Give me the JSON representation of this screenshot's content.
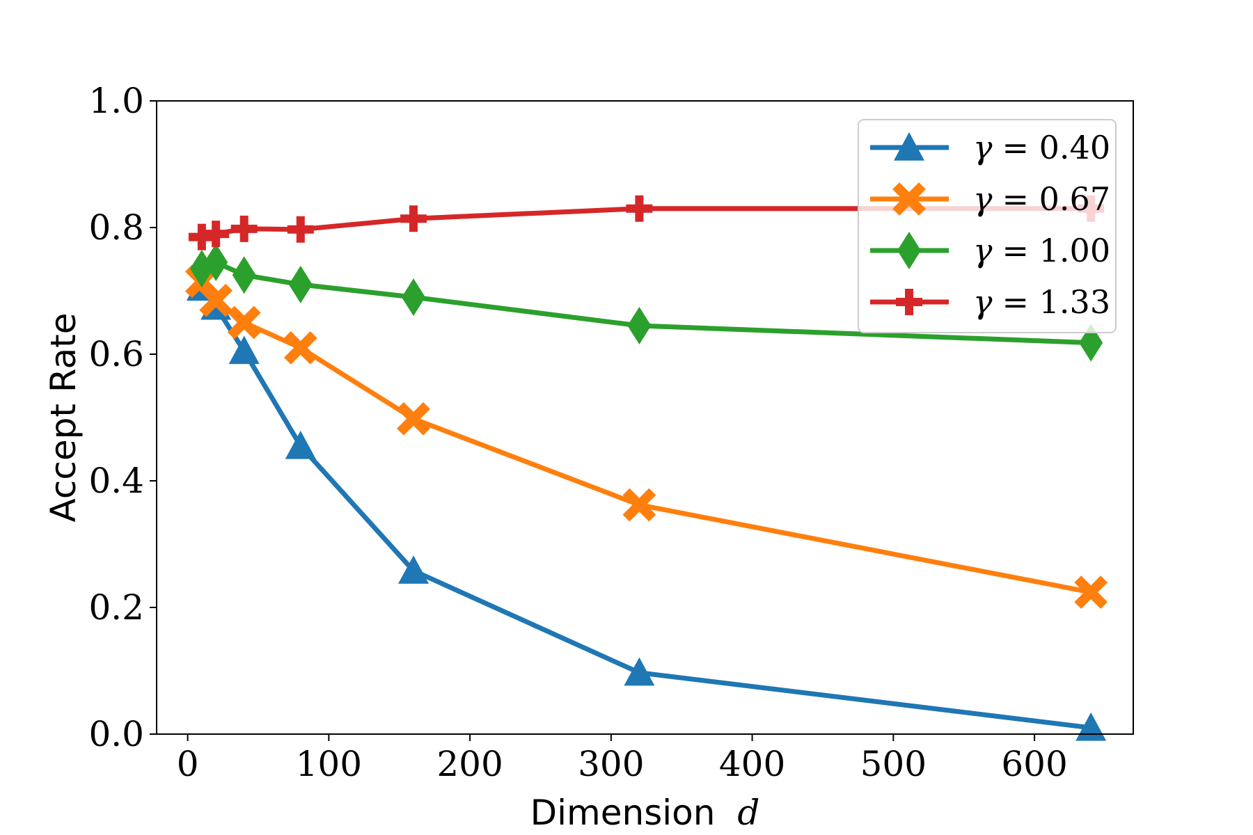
{
  "chart_data": {
    "type": "line",
    "title": "",
    "xlabel": "Dimension",
    "xlabel_var": "d",
    "ylabel": "Accept Rate",
    "xlim": [
      -22,
      670
    ],
    "ylim": [
      0.0,
      1.0
    ],
    "xticks": [
      0,
      100,
      200,
      300,
      400,
      500,
      600
    ],
    "xtick_labels": [
      "0",
      "100",
      "200",
      "300",
      "400",
      "500",
      "600"
    ],
    "yticks": [
      0.0,
      0.2,
      0.4,
      0.6,
      0.8,
      1.0
    ],
    "ytick_labels": [
      "0.0",
      "0.2",
      "0.4",
      "0.6",
      "0.8",
      "1.0"
    ],
    "grid": false,
    "legend_position": "top-right",
    "x": [
      10,
      20,
      40,
      80,
      160,
      320,
      640
    ],
    "series": [
      {
        "name": "γ = 0.40",
        "symbol": "γ",
        "value_label": "= 0.40",
        "color": "#1f77b4",
        "marker": "triangle",
        "values": [
          0.705,
          0.675,
          0.605,
          0.455,
          0.258,
          0.097,
          0.01
        ]
      },
      {
        "name": "γ = 0.67",
        "symbol": "γ",
        "value_label": "= 0.67",
        "color": "#ff7f0e",
        "marker": "x",
        "values": [
          0.715,
          0.685,
          0.65,
          0.61,
          0.498,
          0.362,
          0.224
        ]
      },
      {
        "name": "γ = 1.00",
        "symbol": "γ",
        "value_label": "= 1.00",
        "color": "#2ca02c",
        "marker": "diamond",
        "values": [
          0.735,
          0.745,
          0.725,
          0.71,
          0.69,
          0.645,
          0.618
        ]
      },
      {
        "name": "γ = 1.33",
        "symbol": "γ",
        "value_label": "= 1.33",
        "color": "#d62728",
        "marker": "plus",
        "values": [
          0.785,
          0.79,
          0.798,
          0.797,
          0.814,
          0.83,
          0.83
        ]
      }
    ]
  }
}
